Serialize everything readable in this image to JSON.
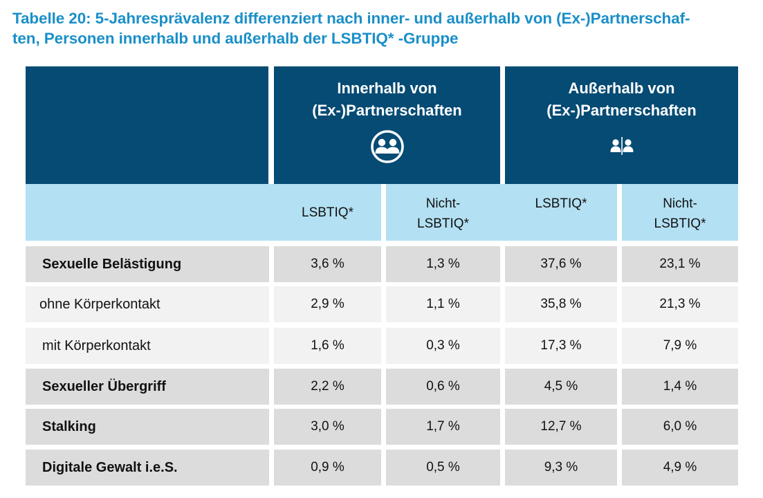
{
  "title": {
    "line1": "Tabelle 20: 5-Jahresprävalenz differenziert nach inner- und außerhalb von (Ex-)Partnerschaf-",
    "line2": "ten, Personen innerhalb und außerhalb der LSBTIQ* -Gruppe"
  },
  "groups": [
    {
      "line1": "Innerhalb von",
      "line2": "(Ex-)Partnerschaften",
      "icon": "couple-icon"
    },
    {
      "line1": "Außerhalb von",
      "line2": "(Ex-)Partnerschaften",
      "icon": "separated-persons-icon"
    }
  ],
  "subheaders": {
    "in_lsbtiq": "LSBTIQ*",
    "in_nicht_1": "Nicht-",
    "in_nicht_2": "LSBTIQ*",
    "out_lsbtiq": "LSBTIQ*",
    "out_nicht_1": "Nicht-",
    "out_nicht_2": "LSBTIQ*"
  },
  "rows": [
    {
      "label": "Sexuelle Belästigung",
      "bold": true,
      "values": [
        "3,6 %",
        "1,3 %",
        "37,6 %",
        "23,1 %"
      ]
    },
    {
      "label": "ohne Körperkontakt",
      "bold": false,
      "values": [
        "2,9 %",
        "1,1 %",
        "35,8 %",
        "21,3 %"
      ]
    },
    {
      "label": "mit Körperkontakt",
      "bold": false,
      "values": [
        "1,6 %",
        "0,3 %",
        "17,3 %",
        "7,9 %"
      ]
    },
    {
      "label": "Sexueller Übergriff",
      "bold": true,
      "values": [
        "2,2 %",
        "0,6 %",
        "4,5 %",
        "1,4 %"
      ]
    },
    {
      "label": "Stalking",
      "bold": true,
      "values": [
        "3,0 %",
        "1,7 %",
        "12,7 %",
        "6,0 %"
      ]
    },
    {
      "label": "Digitale Gewalt i.e.S.",
      "bold": true,
      "values": [
        "0,9 %",
        "0,5 %",
        "9,3 %",
        "4,9 %"
      ]
    }
  ],
  "colors": {
    "dark": "#054b74",
    "light": "#b3e0f3",
    "row_grey": "#dcdcdd",
    "row_white": "#f2f2f2",
    "title": "#1a8fc8"
  }
}
